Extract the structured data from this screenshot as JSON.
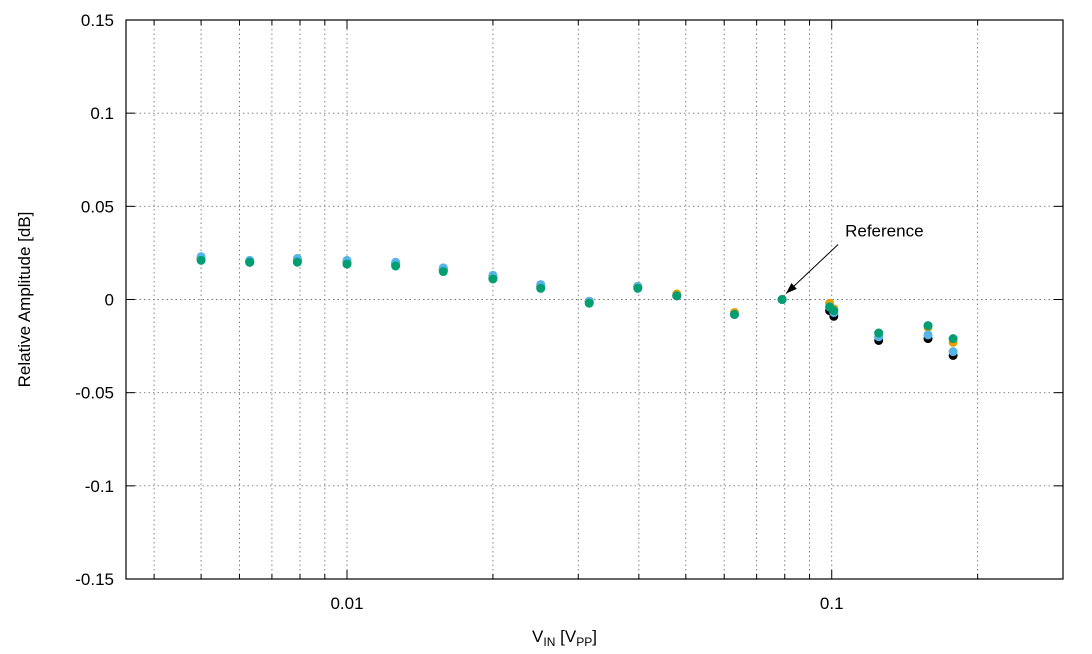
{
  "chart_data": {
    "type": "scatter",
    "title": "",
    "xlabel": {
      "main": "V",
      "main_sub": "IN",
      "unit_open": " [V",
      "unit_sub": "PP",
      "unit_close": "]"
    },
    "ylabel": "Relative Amplitude [dB]",
    "x_scale": "log",
    "xlim": [
      0.0035,
      0.3
    ],
    "ylim": [
      -0.15,
      0.15
    ],
    "grid": true,
    "x_tick_labels": [
      {
        "value": 0.01,
        "label": "0.01"
      },
      {
        "value": 0.1,
        "label": "0.1"
      }
    ],
    "y_tick_labels": [
      {
        "value": 0.15,
        "label": "0.15"
      },
      {
        "value": 0.1,
        "label": "0.1"
      },
      {
        "value": 0.05,
        "label": "0.05"
      },
      {
        "value": 0,
        "label": "0"
      },
      {
        "value": -0.05,
        "label": "-0.05"
      },
      {
        "value": -0.1,
        "label": "-0.1"
      },
      {
        "value": -0.15,
        "label": "-0.15"
      }
    ],
    "annotation": {
      "text": "Reference",
      "target_x": 0.079,
      "target_y": 0.0
    },
    "series": [
      {
        "color": "#000000",
        "x": [
          0.005,
          0.0063,
          0.0079,
          0.01,
          0.0126,
          0.0158,
          0.02,
          0.0251,
          0.0316,
          0.0398,
          0.0479,
          0.063,
          0.079,
          0.099,
          0.101,
          0.125,
          0.158,
          0.178
        ],
        "y": [
          0.022,
          0.02,
          0.021,
          0.02,
          0.019,
          0.016,
          0.012,
          0.007,
          -0.001,
          0.007,
          0.002,
          -0.008,
          0.0,
          -0.006,
          -0.009,
          -0.022,
          -0.021,
          -0.03
        ]
      },
      {
        "color": "#e69f00",
        "x": [
          0.005,
          0.0063,
          0.0079,
          0.01,
          0.0126,
          0.0158,
          0.02,
          0.0251,
          0.0316,
          0.0398,
          0.0479,
          0.063,
          0.079,
          0.099,
          0.101,
          0.125,
          0.158,
          0.178
        ],
        "y": [
          0.022,
          0.021,
          0.021,
          0.02,
          0.019,
          0.016,
          0.012,
          0.007,
          -0.001,
          0.007,
          0.003,
          -0.007,
          0.0,
          -0.002,
          -0.005,
          -0.018,
          -0.015,
          -0.023
        ]
      },
      {
        "color": "#56b4e9",
        "x": [
          0.005,
          0.0063,
          0.0079,
          0.01,
          0.0126,
          0.0158,
          0.02,
          0.0251,
          0.0316,
          0.0398,
          0.0479,
          0.063,
          0.079,
          0.099,
          0.101,
          0.125,
          0.158,
          0.178
        ],
        "y": [
          0.023,
          0.021,
          0.022,
          0.021,
          0.02,
          0.017,
          0.013,
          0.008,
          -0.001,
          0.007,
          0.002,
          -0.008,
          0.0,
          -0.004,
          -0.007,
          -0.02,
          -0.019,
          -0.028
        ]
      },
      {
        "color": "#009e73",
        "x": [
          0.005,
          0.0063,
          0.0079,
          0.01,
          0.0126,
          0.0158,
          0.02,
          0.0251,
          0.0316,
          0.0398,
          0.0479,
          0.063,
          0.079,
          0.099,
          0.101,
          0.125,
          0.158,
          0.178
        ],
        "y": [
          0.021,
          0.02,
          0.02,
          0.019,
          0.018,
          0.015,
          0.011,
          0.006,
          -0.002,
          0.006,
          0.002,
          -0.008,
          0.0,
          -0.004,
          -0.006,
          -0.018,
          -0.014,
          -0.021
        ]
      }
    ]
  }
}
